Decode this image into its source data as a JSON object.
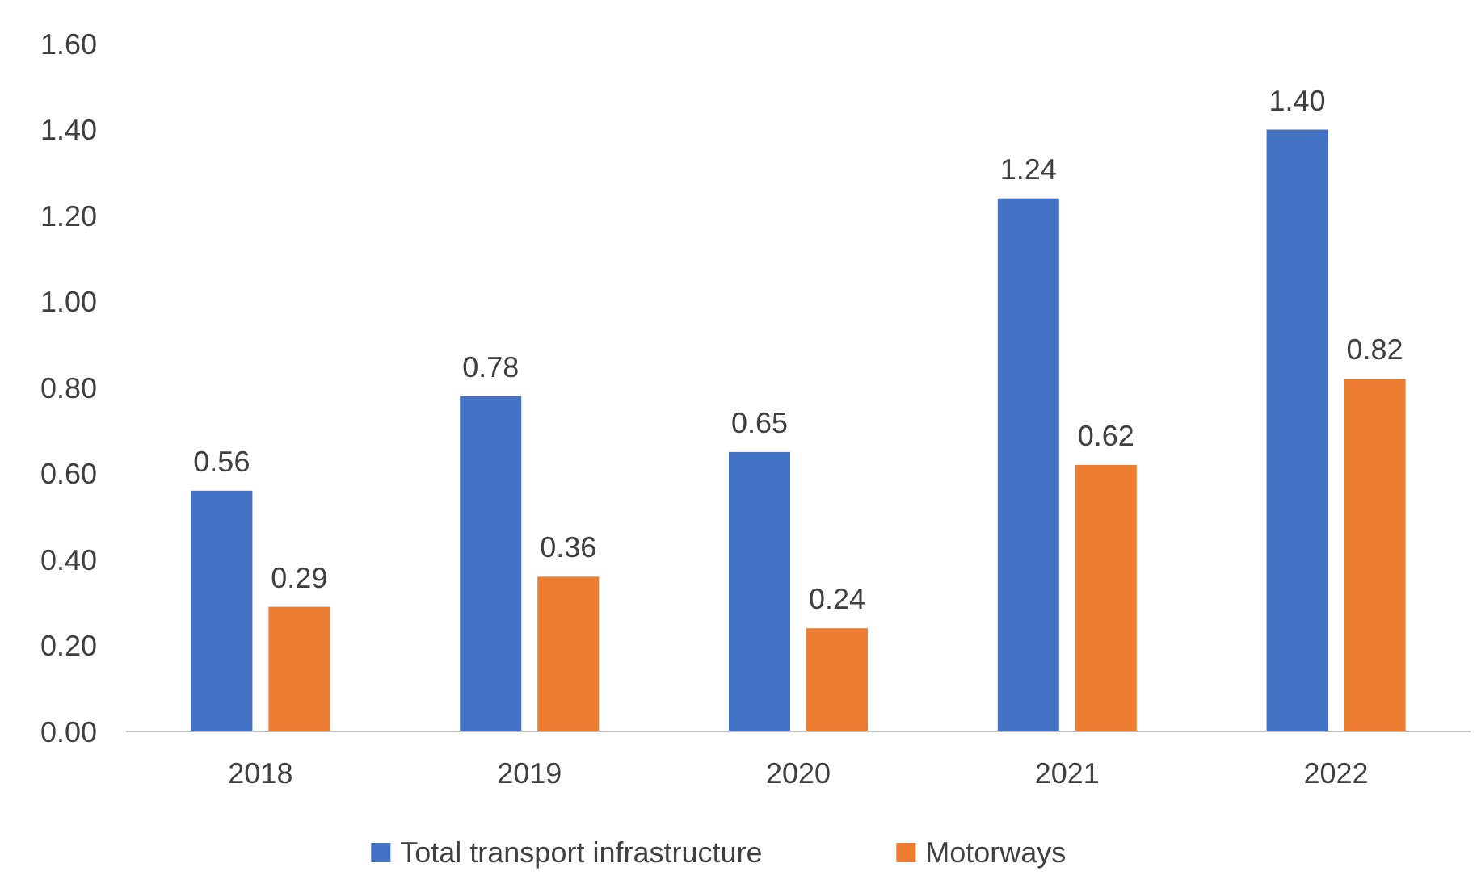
{
  "chart_data": {
    "type": "bar",
    "categories": [
      "2018",
      "2019",
      "2020",
      "2021",
      "2022"
    ],
    "series": [
      {
        "name": "Total transport infrastructure",
        "color": "#4472c4",
        "values": [
          0.56,
          0.78,
          0.65,
          1.24,
          1.4
        ],
        "value_labels": [
          "0.56",
          "0.78",
          "0.65",
          "1.24",
          "1.40"
        ]
      },
      {
        "name": "Motorways",
        "color": "#ed7d31",
        "values": [
          0.29,
          0.36,
          0.24,
          0.62,
          0.82
        ],
        "value_labels": [
          "0.29",
          "0.36",
          "0.24",
          "0.62",
          "0.82"
        ]
      }
    ],
    "ylim": [
      0,
      1.6
    ],
    "yticks": [
      {
        "value": 0,
        "label": "0.00"
      },
      {
        "value": 0.2,
        "label": "0.20"
      },
      {
        "value": 0.4,
        "label": "0.40"
      },
      {
        "value": 0.6,
        "label": "0.60"
      },
      {
        "value": 0.8,
        "label": "0.80"
      },
      {
        "value": 1,
        "label": "1.00"
      },
      {
        "value": 1.2,
        "label": "1.20"
      },
      {
        "value": 1.4,
        "label": "1.40"
      },
      {
        "value": 1.6,
        "label": "1.60"
      }
    ],
    "legend": "bottom"
  }
}
